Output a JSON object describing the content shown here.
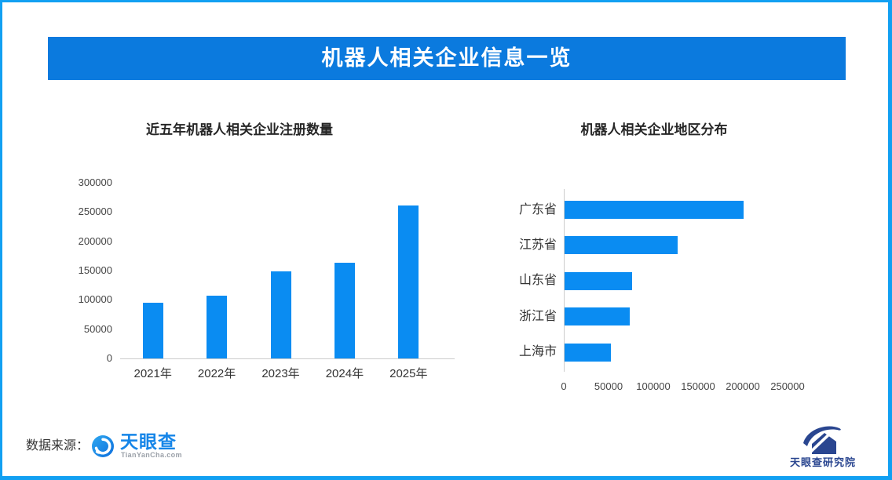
{
  "header": {
    "title": "机器人相关企业信息一览",
    "bg_color": "#0b7ade",
    "text_color": "#ffffff"
  },
  "page": {
    "border_color": "#12a0f2",
    "background": "#ffffff"
  },
  "chart_data": [
    {
      "type": "bar",
      "orientation": "vertical",
      "title": "近五年机器人相关企业注册数量",
      "categories": [
        "2021年",
        "2022年",
        "2023年",
        "2024年",
        "2025年"
      ],
      "values": [
        95000,
        107000,
        148000,
        164000,
        261000
      ],
      "ylim": [
        0,
        300000
      ],
      "yticks": [
        0,
        50000,
        100000,
        150000,
        200000,
        250000,
        300000
      ],
      "xlabel": "",
      "ylabel": "",
      "grid": false,
      "legend": "none",
      "bar_color": "#0a8cf2"
    },
    {
      "type": "bar",
      "orientation": "horizontal",
      "title": "机器人相关企业地区分布",
      "categories": [
        "广东省",
        "江苏省",
        "山东省",
        "浙江省",
        "上海市"
      ],
      "values": [
        200000,
        126000,
        75000,
        73000,
        52000
      ],
      "xlim": [
        0,
        250000
      ],
      "xticks": [
        0,
        50000,
        100000,
        150000,
        200000,
        250000
      ],
      "xlabel": "",
      "ylabel": "",
      "grid": false,
      "legend": "none",
      "bar_color": "#0a8cf2"
    }
  ],
  "footer": {
    "source_label": "数据来源：",
    "tianyancha_logo": {
      "name": "天眼查",
      "domain": "TianYanCha.com",
      "brand_blue": "#1585e8"
    },
    "research_logo": {
      "name": "天眼查研究院",
      "brand_navy": "#2a4690"
    }
  }
}
